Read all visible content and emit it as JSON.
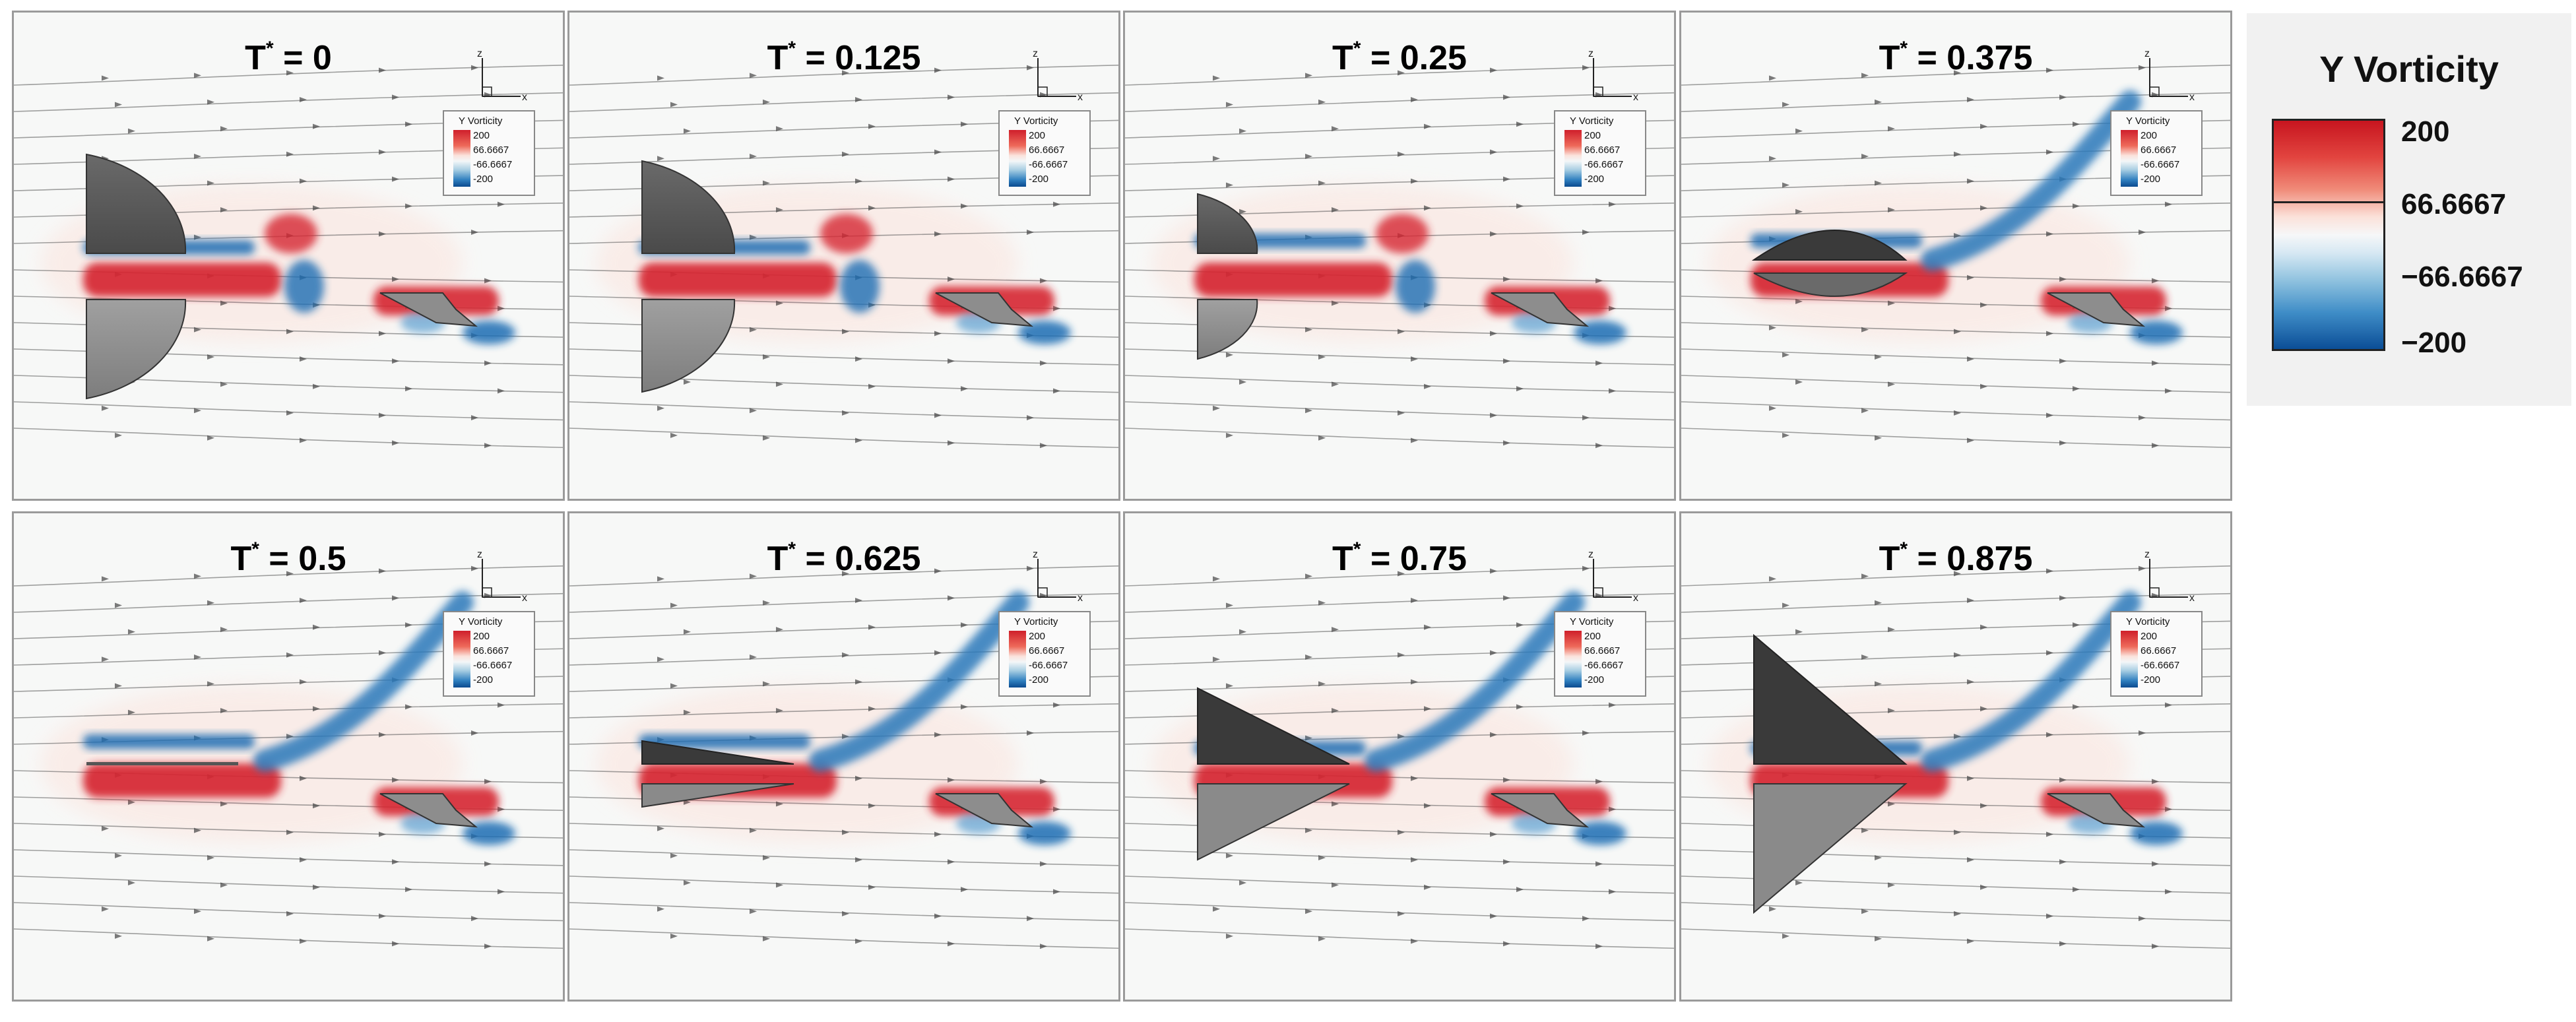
{
  "legend": {
    "title": "Y Vorticity",
    "labels": [
      "200",
      "66.6667",
      "−66.6667",
      "−200"
    ],
    "colors": {
      "positive": "#d62633",
      "negative": "#1f6db3",
      "neutral": "#f4f6f7"
    }
  },
  "mini_legend": {
    "title": "Y Vorticity",
    "labels": [
      "200",
      "66.6667",
      "-66.6667",
      "-200"
    ]
  },
  "axes": {
    "z": "z",
    "x": "x"
  },
  "panels": [
    {
      "tlabel": "T",
      "value": "= 0"
    },
    {
      "tlabel": "T",
      "value": "= 0.125"
    },
    {
      "tlabel": "T",
      "value": "= 0.25"
    },
    {
      "tlabel": "T",
      "value": "= 0.375"
    },
    {
      "tlabel": "T",
      "value": "= 0.5"
    },
    {
      "tlabel": "T",
      "value": "= 0.625"
    },
    {
      "tlabel": "T",
      "value": "= 0.75"
    },
    {
      "tlabel": "T",
      "value": "= 0.875"
    }
  ],
  "star": "*",
  "icons": [
    "wing-shape-icon",
    "airfoil-body-icon",
    "streamline-arrow-icon"
  ]
}
